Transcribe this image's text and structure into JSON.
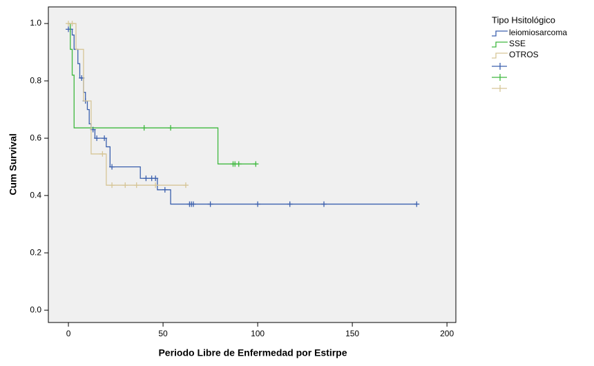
{
  "chart_data": {
    "type": "survival-step",
    "x_label": "Periodo Libre de Enfermedad por Estirpe",
    "y_label": "Cum Survival",
    "legend_title": "Tipo Hsitológico",
    "xlim": [
      -10.6,
      204.7
    ],
    "ylim": [
      -0.043,
      1.058
    ],
    "xticks": [
      0,
      50,
      100,
      150,
      200
    ],
    "yticks": [
      {
        "value": 0,
        "label": "0.0"
      },
      {
        "value": 0.2,
        "label": "0.2"
      },
      {
        "value": 0.4,
        "label": "0.4"
      },
      {
        "value": 0.6,
        "label": "0.6"
      },
      {
        "value": 0.8,
        "label": "0.8"
      },
      {
        "value": 1,
        "label": "1.0"
      }
    ],
    "series": [
      {
        "name": "leiomiosarcoma",
        "color": "#3a5fad",
        "x": [
          0,
          2,
          3,
          5,
          6,
          8,
          9,
          10,
          11,
          12,
          14,
          20,
          22,
          38,
          47,
          54,
          184
        ],
        "values": [
          0.98,
          0.96,
          0.91,
          0.86,
          0.81,
          0.76,
          0.73,
          0.7,
          0.65,
          0.63,
          0.6,
          0.57,
          0.5,
          0.46,
          0.42,
          0.37,
          0.37
        ],
        "censored": {
          "x": [
            0,
            1,
            7,
            9,
            13,
            15,
            19,
            23,
            41,
            44,
            46,
            51,
            64,
            65,
            66,
            75,
            100,
            117,
            135,
            184
          ],
          "values": [
            0.98,
            0.98,
            0.81,
            0.73,
            0.63,
            0.6,
            0.6,
            0.5,
            0.46,
            0.46,
            0.46,
            0.42,
            0.37,
            0.37,
            0.37,
            0.37,
            0.37,
            0.37,
            0.37,
            0.37
          ]
        }
      },
      {
        "name": "SSE",
        "color": "#3db83d",
        "x": [
          0,
          1,
          2,
          3,
          79,
          99
        ],
        "values": [
          1.0,
          0.91,
          0.82,
          0.636,
          0.51,
          0.51
        ],
        "censored": {
          "x": [
            40,
            54,
            87,
            88,
            90,
            99
          ],
          "values": [
            0.636,
            0.636,
            0.51,
            0.51,
            0.51,
            0.51
          ]
        }
      },
      {
        "name": "OTROS",
        "color": "#d6c596",
        "x": [
          0,
          4,
          8,
          12,
          20,
          62
        ],
        "values": [
          1.0,
          0.91,
          0.73,
          0.545,
          0.436,
          0.436
        ],
        "censored": {
          "x": [
            0,
            2,
            18,
            23,
            30,
            36,
            46,
            62
          ],
          "values": [
            1.0,
            1.0,
            0.545,
            0.436,
            0.436,
            0.436,
            0.436,
            0.436
          ]
        }
      }
    ]
  }
}
